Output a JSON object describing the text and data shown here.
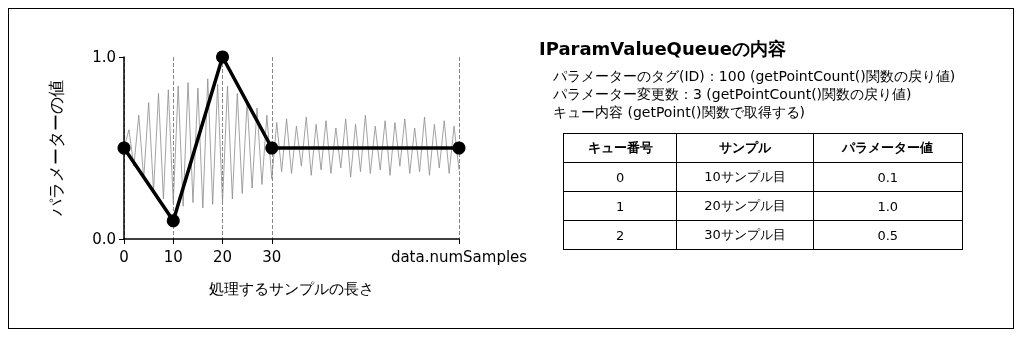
{
  "chart_data": [
    {
      "type": "line",
      "xlabel": "処理するサンプルの長さ",
      "ylabel": "パラメーターの値",
      "xlim": [
        0,
        68
      ],
      "ylim": [
        0,
        1.0
      ],
      "xticks": [
        0,
        10,
        20,
        30,
        {
          "value": 68,
          "label": "data.numSamples"
        }
      ],
      "yticks": [
        {
          "value": 0,
          "label": "0.0"
        },
        {
          "value": 1,
          "label": "1.0"
        }
      ],
      "grid": "x",
      "series": [
        {
          "color": "#8c8c8c",
          "marker": "none",
          "x": [
            0,
            1,
            2,
            3,
            4,
            5,
            6,
            7,
            8,
            9,
            10,
            11,
            12,
            13,
            14,
            15,
            16,
            17,
            18,
            19,
            20,
            21,
            22,
            23,
            24,
            25,
            26,
            27,
            28,
            29,
            30,
            31,
            32,
            33,
            34,
            35,
            36,
            37,
            38,
            39,
            40,
            41,
            42,
            43,
            44,
            45,
            46,
            47,
            48,
            49,
            50,
            51,
            52,
            53,
            54,
            55,
            56,
            57,
            58,
            59,
            60,
            61,
            62,
            63,
            64,
            65,
            66,
            67,
            68
          ],
          "values": [
            0.5,
            0.6,
            0.4,
            0.68,
            0.33,
            0.75,
            0.26,
            0.8,
            0.22,
            0.82,
            0.2,
            0.84,
            0.18,
            0.86,
            0.2,
            0.83,
            0.17,
            0.88,
            0.19,
            0.85,
            0.2,
            0.84,
            0.22,
            0.8,
            0.25,
            0.76,
            0.28,
            0.72,
            0.3,
            0.68,
            0.33,
            0.64,
            0.37,
            0.66,
            0.36,
            0.62,
            0.4,
            0.67,
            0.35,
            0.63,
            0.38,
            0.65,
            0.36,
            0.61,
            0.39,
            0.66,
            0.34,
            0.63,
            0.37,
            0.68,
            0.36,
            0.62,
            0.38,
            0.65,
            0.35,
            0.64,
            0.4,
            0.66,
            0.36,
            0.61,
            0.37,
            0.67,
            0.35,
            0.63,
            0.39,
            0.65,
            0.36,
            0.62,
            0.38
          ]
        },
        {
          "color": "#000000",
          "marker": "circle",
          "x": [
            0,
            10,
            20,
            30,
            68
          ],
          "values": [
            0.5,
            0.1,
            1.0,
            0.5,
            0.5
          ]
        }
      ]
    },
    {
      "type": "other",
      "title": "IParamValueQueueの内容",
      "annotations": [
        "パラメーターのタグ(ID)：100 (getPointCount()関数の戻り値)",
        "パラメーター変更数：3 (getPointCount()関数の戻り値)",
        "キュー内容 (getPoint()関数で取得する)",
        "キュー番号",
        "サンプル",
        "パラメーター値",
        "0",
        "10サンプル目",
        "0.1",
        "1",
        "20サンプル目",
        "1.0",
        "2",
        "30サンプル目",
        "0.5"
      ]
    }
  ]
}
